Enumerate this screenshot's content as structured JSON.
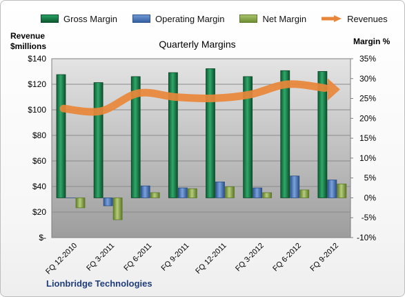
{
  "chart_data": {
    "type": "bar",
    "title": "Quarterly Margins",
    "ylabel": "Revenue\n$millions",
    "y2label": "Margin  %",
    "footer": "Lionbridge Technologies",
    "legend_position": "top",
    "categories": [
      "FQ 12-2010",
      "FQ 3-2011",
      "FQ 6-2011",
      "FQ 9-2011",
      "FQ 12-2011",
      "FQ 3-2012",
      "FQ 6-2012",
      "FQ 9-2012"
    ],
    "ylim": [
      0,
      140
    ],
    "y2lim": [
      -10,
      35
    ],
    "y_ticks": [
      "$-",
      "$20",
      "$40",
      "$60",
      "$80",
      "$100",
      "$120",
      "$140"
    ],
    "y2_ticks": [
      "-10%",
      "-5%",
      "0%",
      "5%",
      "10%",
      "15%",
      "20%",
      "25%",
      "30%",
      "35%"
    ],
    "series": [
      {
        "name": "Gross Margin",
        "axis": "right",
        "kind": "bar",
        "color": "#1a7a45",
        "values": [
          31,
          29,
          30.5,
          31.5,
          32.5,
          30.5,
          32,
          31.8
        ]
      },
      {
        "name": "Operating Margin",
        "axis": "right",
        "kind": "bar",
        "color": "#4a78bd",
        "values": [
          0,
          -2,
          3,
          2.5,
          4,
          2.5,
          5.5,
          4.5
        ]
      },
      {
        "name": "Net Margin",
        "axis": "right",
        "kind": "bar",
        "color": "#8aab4a",
        "values": [
          -2.5,
          -5.5,
          1.3,
          2.3,
          2.8,
          1.3,
          2,
          3.5
        ]
      },
      {
        "name": "Revenues",
        "axis": "left",
        "kind": "line",
        "color": "#e8873a",
        "values": [
          101,
          99,
          113,
          110,
          109,
          112,
          120,
          117
        ]
      }
    ]
  }
}
